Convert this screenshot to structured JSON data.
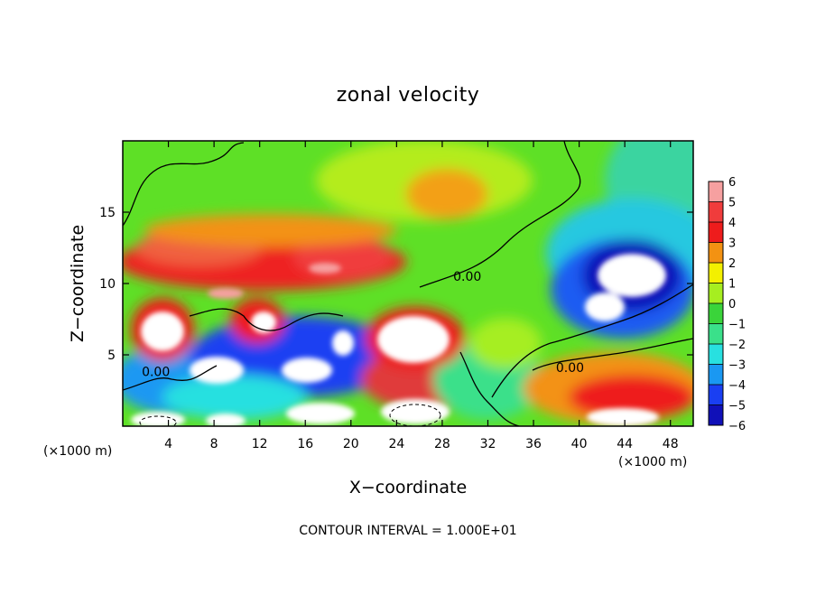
{
  "chart_data": {
    "type": "heatmap",
    "title": "zonal velocity",
    "xlabel": "X−coordinate",
    "ylabel": "Z−coordinate",
    "x_unit_left": "(×1000 m)",
    "x_unit_right": "(×1000 m)",
    "xlim": [
      0,
      50
    ],
    "ylim": [
      0,
      20
    ],
    "x_ticks": [
      4,
      8,
      12,
      16,
      20,
      24,
      28,
      32,
      36,
      40,
      44,
      48
    ],
    "y_ticks": [
      5,
      10,
      15
    ],
    "colorbar": {
      "levels": [
        6,
        5,
        4,
        3,
        2,
        1,
        0,
        -1,
        -2,
        -3,
        -4,
        -5,
        -6
      ],
      "labels": [
        "6",
        "5",
        "4",
        "3",
        "2",
        "1",
        "0",
        "−1",
        "−2",
        "−3",
        "−4",
        "−5",
        "−6"
      ],
      "colors": [
        "#f6a0a0",
        "#f03c3c",
        "#ee1c1c",
        "#f39212",
        "#f3f000",
        "#a6ee20",
        "#3ad43a",
        "#3ae08a",
        "#28e0e0",
        "#1a98f2",
        "#1a3ff2",
        "#1010b8",
        "#7a18b4"
      ]
    },
    "contour_labels": [
      {
        "text": "0.00",
        "x": 30.2,
        "y": 10.2
      },
      {
        "text": "0.00",
        "x": 2.9,
        "y": 3.5
      },
      {
        "text": "0.00",
        "x": 39.2,
        "y": 3.8
      }
    ],
    "footer": "CONTOUR INTERVAL = 1.000E+01",
    "grid": false
  }
}
